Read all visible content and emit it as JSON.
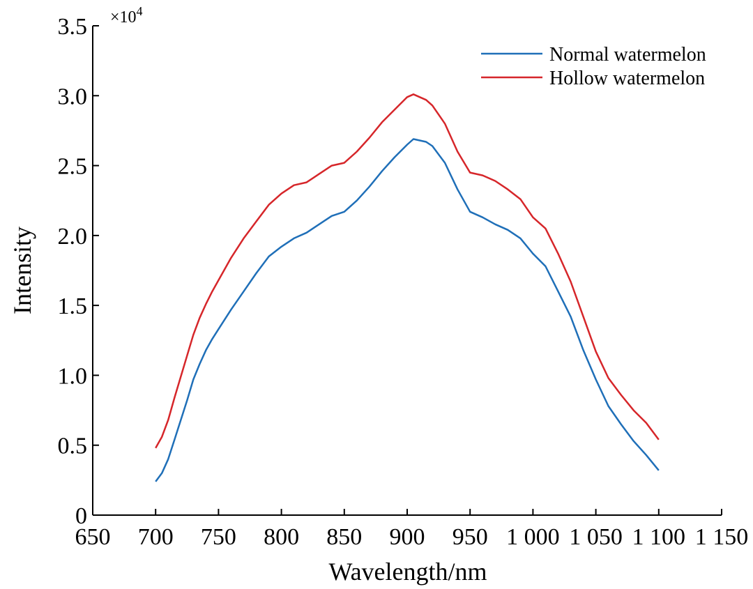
{
  "chart_data": {
    "type": "line",
    "title": "",
    "xlabel": "Wavelength/nm",
    "ylabel": "Intensity",
    "y_multiplier": "×10",
    "y_multiplier_exp": "4",
    "xlim": [
      650,
      1150
    ],
    "ylim": [
      0,
      3.5
    ],
    "x_tick_values": [
      650,
      700,
      750,
      800,
      850,
      900,
      950,
      1000,
      1050,
      1100,
      1150
    ],
    "x_tick_labels": [
      "650",
      "700",
      "750",
      "800",
      "850",
      "900",
      "950",
      "1 000",
      "1 050",
      "1 100",
      "1 150"
    ],
    "y_tick_values": [
      0,
      0.5,
      1.0,
      1.5,
      2.0,
      2.5,
      3.0,
      3.5
    ],
    "y_tick_labels": [
      "0",
      "0.5",
      "1.0",
      "1.5",
      "2.0",
      "2.5",
      "3.0",
      "3.5"
    ],
    "legend_position": "top-right",
    "series": [
      {
        "name": "Normal watermelon",
        "color": "#1f6fb8",
        "x": [
          700,
          705,
          710,
          715,
          720,
          725,
          730,
          735,
          740,
          745,
          750,
          760,
          770,
          780,
          790,
          800,
          810,
          820,
          830,
          840,
          850,
          860,
          870,
          880,
          890,
          900,
          905,
          910,
          915,
          920,
          930,
          940,
          950,
          960,
          970,
          980,
          990,
          1000,
          1010,
          1020,
          1030,
          1040,
          1050,
          1060,
          1070,
          1080,
          1090,
          1100
        ],
        "y": [
          0.24,
          0.3,
          0.4,
          0.54,
          0.68,
          0.82,
          0.97,
          1.08,
          1.18,
          1.26,
          1.33,
          1.47,
          1.6,
          1.73,
          1.85,
          1.92,
          1.98,
          2.02,
          2.08,
          2.14,
          2.17,
          2.25,
          2.35,
          2.46,
          2.56,
          2.65,
          2.69,
          2.68,
          2.67,
          2.64,
          2.52,
          2.33,
          2.17,
          2.13,
          2.08,
          2.04,
          1.98,
          1.87,
          1.78,
          1.6,
          1.42,
          1.18,
          0.97,
          0.78,
          0.65,
          0.53,
          0.43,
          0.32
        ]
      },
      {
        "name": "Hollow watermelon",
        "color": "#d6262a",
        "x": [
          700,
          705,
          710,
          715,
          720,
          725,
          730,
          735,
          740,
          745,
          750,
          760,
          770,
          780,
          790,
          800,
          810,
          820,
          830,
          840,
          850,
          860,
          870,
          880,
          890,
          900,
          905,
          910,
          915,
          920,
          930,
          940,
          950,
          960,
          970,
          980,
          990,
          1000,
          1010,
          1020,
          1030,
          1040,
          1050,
          1060,
          1070,
          1080,
          1090,
          1100
        ],
        "y": [
          0.48,
          0.56,
          0.68,
          0.84,
          0.99,
          1.14,
          1.29,
          1.41,
          1.51,
          1.6,
          1.68,
          1.84,
          1.98,
          2.1,
          2.22,
          2.3,
          2.36,
          2.38,
          2.44,
          2.5,
          2.52,
          2.6,
          2.7,
          2.81,
          2.9,
          2.99,
          3.01,
          2.99,
          2.97,
          2.93,
          2.8,
          2.6,
          2.45,
          2.43,
          2.39,
          2.33,
          2.26,
          2.13,
          2.05,
          1.87,
          1.67,
          1.42,
          1.17,
          0.98,
          0.86,
          0.75,
          0.66,
          0.54
        ]
      }
    ]
  }
}
